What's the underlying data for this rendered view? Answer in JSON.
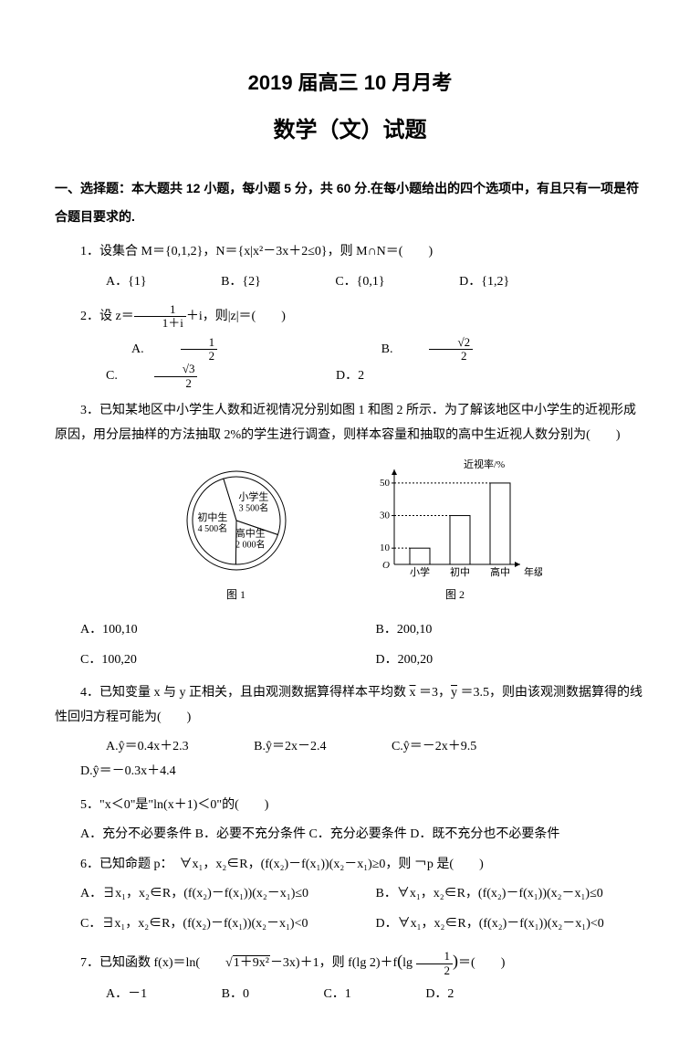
{
  "header": {
    "line1": "2019 届高三 10 月月考",
    "line2": "数学（文）试题"
  },
  "section1": {
    "instruction": "一、选择题：本大题共 12 小题，每小题 5 分，共 60 分.在每小题给出的四个选项中，有且只有一项是符合题目要求的."
  },
  "q1": {
    "stem": "1．设集合 M＝{0,1,2}，N＝{x|x²－3x＋2≤0}，则 M∩N＝(　　)",
    "a": "A．{1}",
    "b": "B．{2}",
    "c": "C．{0,1}",
    "d": "D．{1,2}"
  },
  "q2": {
    "stem_pre": "2．设 z＝",
    "stem_post": "＋i，则|z|＝(　　)",
    "frac_n": "1",
    "frac_d": "1＋i",
    "a_pre": "A.",
    "a_n": "1",
    "a_d": "2",
    "b_pre": "B.",
    "b_n": "√2",
    "b_d": "2",
    "c_pre": "C.",
    "c_n": "√3",
    "c_d": "2",
    "d": "D．2"
  },
  "q3": {
    "stem": "3．已知某地区中小学生人数和近视情况分别如图 1 和图 2 所示．为了解该地区中小学生的近视形成原因，用分层抽样的方法抽取 2%的学生进行调查，则样本容量和抽取的高中生近视人数分别为(　　)",
    "a": "A．100,10",
    "b": "B．200,10",
    "c": "C．100,20",
    "d": "D．200,20"
  },
  "chart1": {
    "type": "pie",
    "labels": [
      "小学生",
      "高中生",
      "初中生"
    ],
    "sublabels": [
      "3 500名",
      "2 000名",
      "4 500名"
    ],
    "values": [
      3500,
      2000,
      4500
    ],
    "slice_colors": [
      "#ffffff",
      "#ffffff",
      "#ffffff"
    ],
    "border_color": "#000000",
    "bg": "#ffffff",
    "caption": "图 1",
    "font_size": 11
  },
  "chart2": {
    "type": "bar",
    "title": "近视率/%",
    "xlabels": [
      "小学",
      "初中",
      "高中"
    ],
    "xlabel": "年级",
    "values": [
      10,
      30,
      50
    ],
    "ylim": [
      0,
      55
    ],
    "yticks": [
      10,
      30,
      50
    ],
    "bar_color": "#ffffff",
    "border_color": "#000000",
    "bar_width": 0.5,
    "bg": "#ffffff",
    "caption": "图 2",
    "font_size": 11
  },
  "q4": {
    "stem_pre": "4．已知变量 x 与 y 正相关，且由观测数据算得样本平均数 ",
    "x_bar": "x",
    "x_val": " ＝3，",
    "y_bar": "y",
    "y_val": " ＝3.5，则由该观测数据算得的线性回归方程可能为(　　)",
    "a": "A.ŷ＝0.4x＋2.3",
    "b": "B.ŷ＝2x－2.4",
    "c": "C.ŷ＝－2x＋9.5",
    "d": "D.ŷ＝－0.3x＋4.4"
  },
  "q5": {
    "stem": "5．\"x＜0\"是\"ln(x＋1)＜0\"的(　　)",
    "opts": "A．充分不必要条件 B．必要不充分条件 C．充分必要条件 D．既不充分也不必要条件"
  },
  "q6": {
    "stem": "6．已知命题 p：　∀x₁，x₂∈R，(f(x₂)－f(x₁))(x₂－x₁)≥0，则 ￢p 是(　　)",
    "a": "A．∃x₁，x₂∈R，(f(x₂)－f(x₁))(x₂－x₁)≤0",
    "b": "B．∀x₁，x₂∈R，(f(x₂)－f(x₁))(x₂－x₁)≤0",
    "c": "C．∃x₁，x₂∈R，(f(x₂)－f(x₁))(x₂－x₁)<0",
    "d": "D．∀x₁，x₂∈R，(f(x₂)－f(x₁))(x₂－x₁)<0"
  },
  "q7": {
    "stem_pre": "7．已知函数 f(x)＝ln(",
    "sqrt_content": "1＋9x²",
    "stem_mid": "－3x)＋1，则 f(lg 2)＋f",
    "exp_n": "lg ",
    "exp_frac_n": "1",
    "exp_frac_d": "2",
    "stem_post": "＝(　　)",
    "a": "A．－1",
    "b": "B．0",
    "c": "C．1",
    "d": "D．2"
  }
}
